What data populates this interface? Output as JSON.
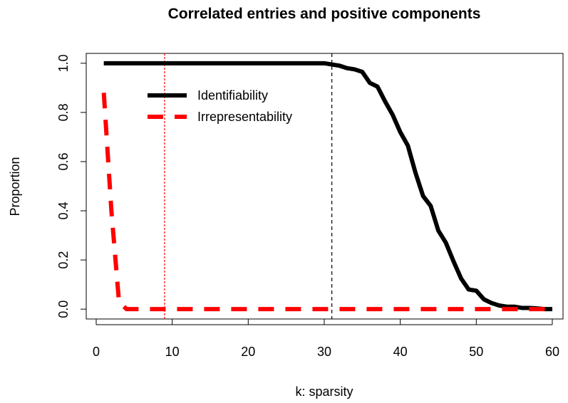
{
  "chart_data": {
    "type": "line",
    "title": "Correlated entries and positive components",
    "xlabel": "k: sparsity",
    "ylabel": "Proportion",
    "x": [
      1,
      2,
      3,
      4,
      5,
      6,
      7,
      8,
      9,
      10,
      11,
      12,
      13,
      14,
      15,
      16,
      17,
      18,
      19,
      20,
      21,
      22,
      23,
      24,
      25,
      26,
      27,
      28,
      29,
      30,
      31,
      32,
      33,
      34,
      35,
      36,
      37,
      38,
      39,
      40,
      41,
      42,
      43,
      44,
      45,
      46,
      47,
      48,
      49,
      50,
      51,
      52,
      53,
      54,
      55,
      56,
      57,
      58,
      59,
      60
    ],
    "series": [
      {
        "name": "Identifiability",
        "color": "#000000",
        "dash": "solid",
        "values": [
          1,
          1,
          1,
          1,
          1,
          1,
          1,
          1,
          1,
          1,
          1,
          1,
          1,
          1,
          1,
          1,
          1,
          1,
          1,
          1,
          1,
          1,
          1,
          1,
          1,
          1,
          1,
          1,
          1,
          1,
          0.995,
          0.99,
          0.98,
          0.975,
          0.965,
          0.92,
          0.905,
          0.845,
          0.79,
          0.72,
          0.665,
          0.555,
          0.46,
          0.42,
          0.32,
          0.27,
          0.195,
          0.125,
          0.08,
          0.075,
          0.04,
          0.025,
          0.015,
          0.01,
          0.01,
          0.005,
          0.005,
          0.003,
          0,
          0
        ]
      },
      {
        "name": "Irrepresentability",
        "color": "#ff0000",
        "dash": "dashed",
        "values": [
          0.88,
          0.4,
          0.03,
          0,
          0,
          0,
          0,
          0,
          0,
          0,
          0,
          0,
          0,
          0,
          0,
          0,
          0,
          0,
          0,
          0,
          0,
          0,
          0,
          0,
          0,
          0,
          0,
          0,
          0,
          0,
          0,
          0,
          0,
          0,
          0,
          0,
          0,
          0,
          0,
          0,
          0,
          0,
          0,
          0,
          0,
          0,
          0,
          0,
          0,
          0,
          0,
          0,
          0,
          0,
          0,
          0,
          0,
          0,
          0,
          0
        ]
      }
    ],
    "vlines": [
      {
        "x": 9,
        "color": "#ff0000",
        "style": "dotted"
      },
      {
        "x": 31,
        "color": "#000000",
        "style": "dashed"
      }
    ],
    "xlim": [
      -1.31,
      61.41
    ],
    "xticks": [
      0,
      10,
      20,
      30,
      40,
      50,
      60
    ],
    "ylim": [
      -0.04,
      1.04
    ],
    "yticks": [
      {
        "value": 0,
        "label": "0.0"
      },
      0.2,
      0.4,
      0.6,
      0.8,
      {
        "value": 1,
        "label": "1.0"
      }
    ],
    "legend": "top-left"
  }
}
